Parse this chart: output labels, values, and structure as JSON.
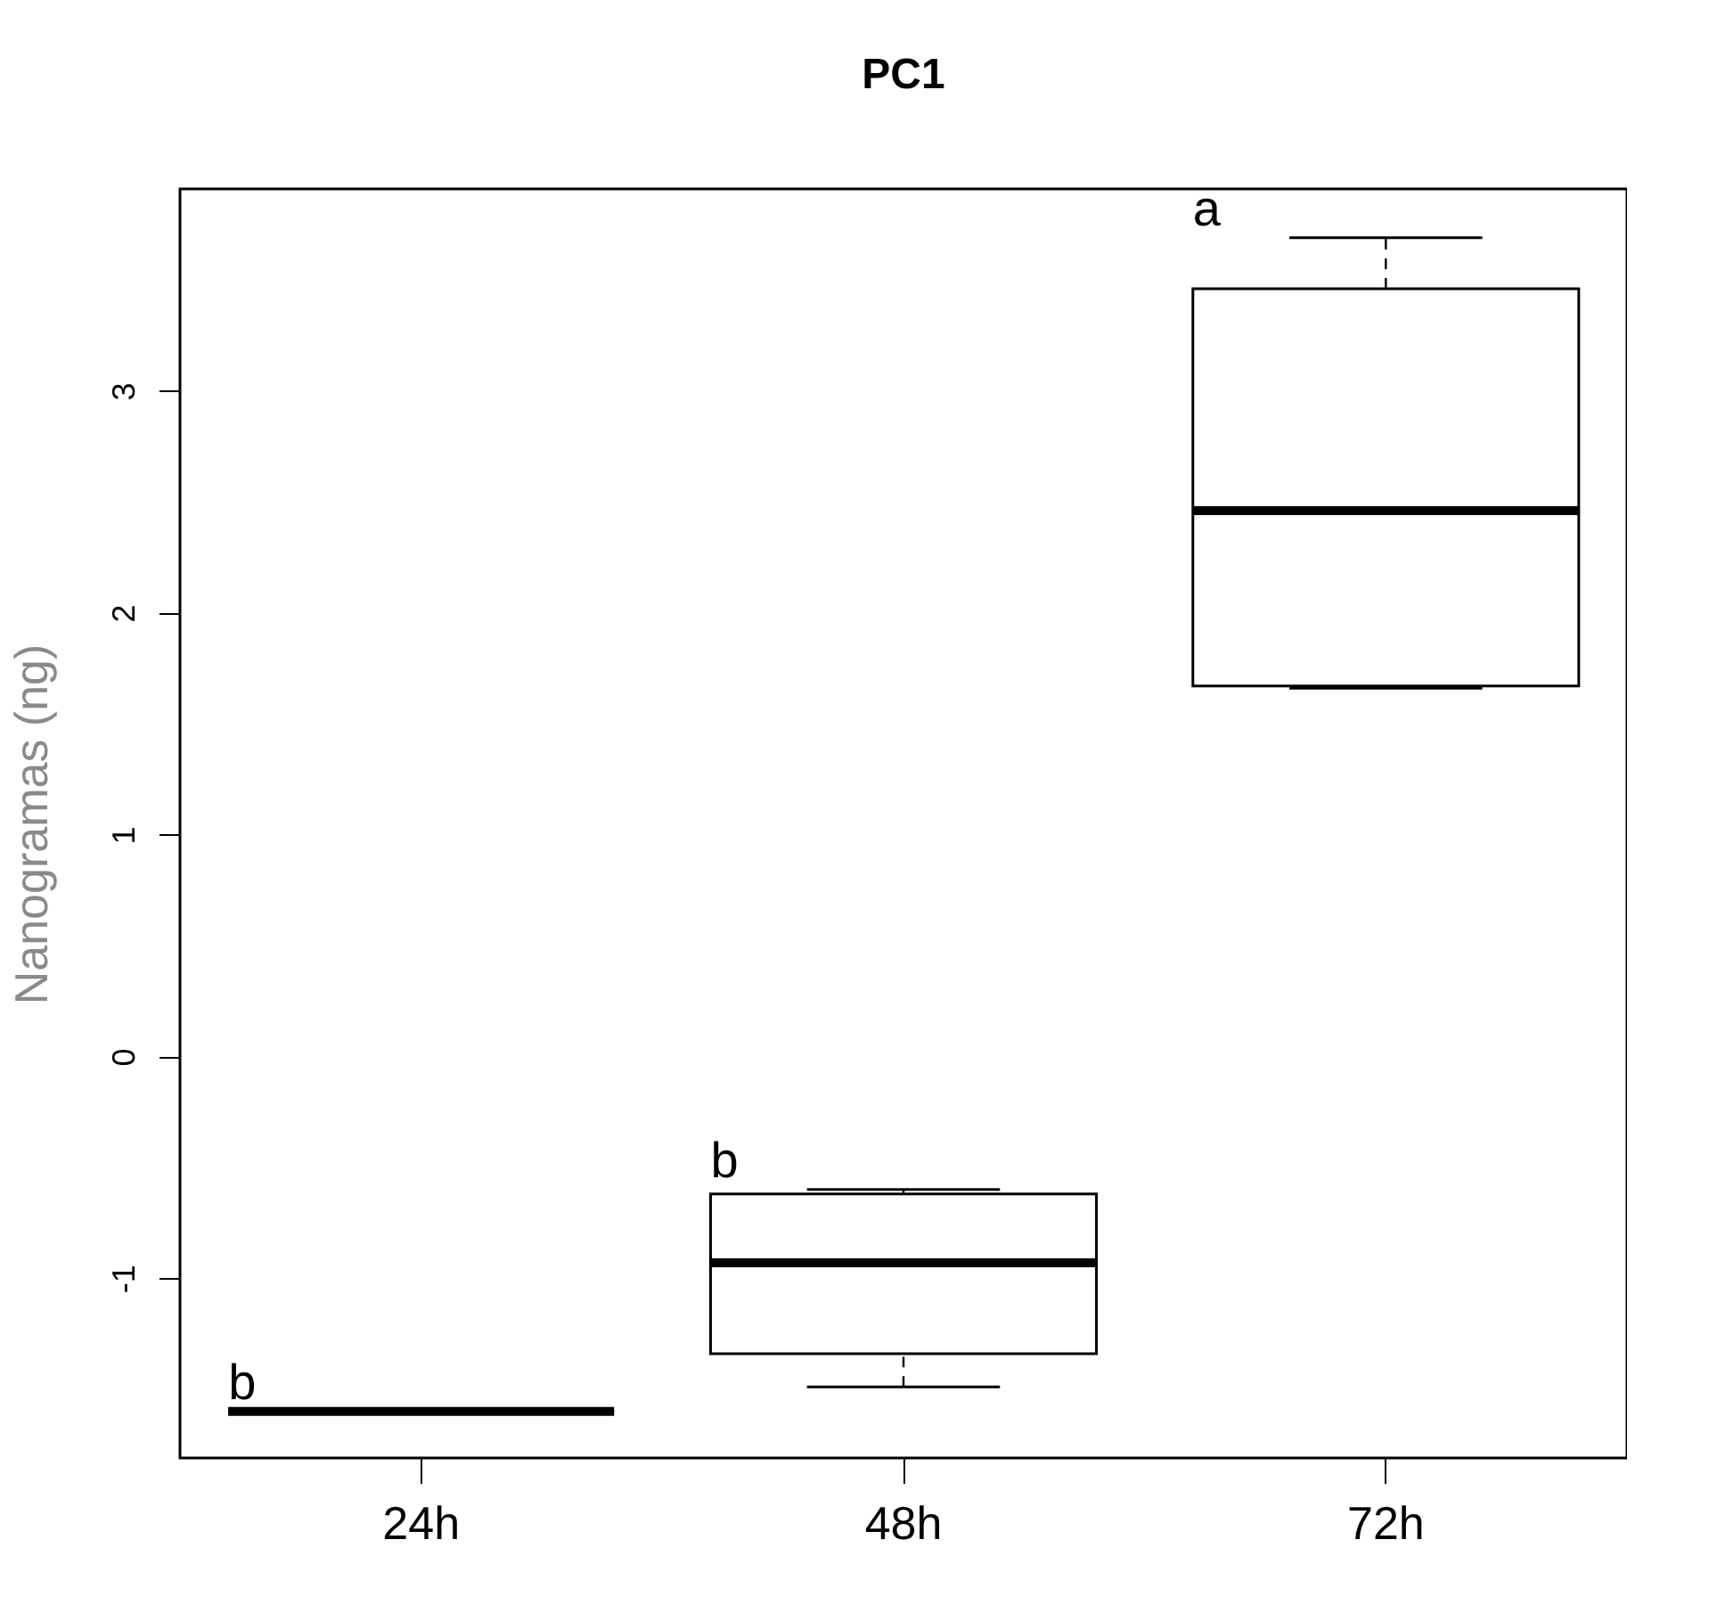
{
  "chart_data": {
    "type": "box",
    "title": "PC1",
    "ylabel": "Nanogramas (ng)",
    "categories": [
      "24h",
      "48h",
      "72h"
    ],
    "boxes": [
      {
        "low": -1.6,
        "q1": -1.6,
        "median": -1.6,
        "q3": -1.6,
        "high": -1.6
      },
      {
        "low": -1.49,
        "q1": -1.34,
        "median": -0.93,
        "q3": -0.62,
        "high": -0.6
      },
      {
        "low": 1.66,
        "q1": 1.67,
        "median": 2.46,
        "q3": 3.46,
        "high": 3.69
      }
    ],
    "ylim": [
      -1.81,
      3.91
    ],
    "yticks": [
      -1,
      0,
      1,
      2,
      3
    ],
    "annotations": [
      "b",
      "b",
      "a"
    ]
  }
}
